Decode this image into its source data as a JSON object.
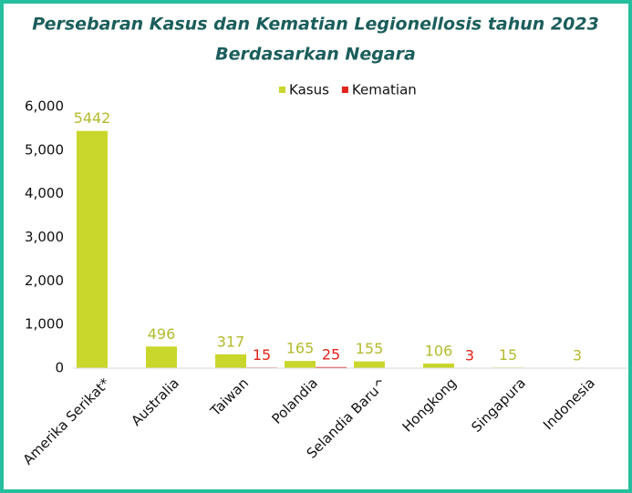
{
  "chart_data": {
    "type": "bar",
    "title": [
      "Persebaran Kasus dan Kematian Legionellosis tahun 2023",
      "Berdasarkan Negara"
    ],
    "categories": [
      "Amerika Serikat*",
      "Australia",
      "Taiwan",
      "Polandia",
      "Selandia Baru^",
      "Hongkong",
      "Singapura",
      "Indonesia"
    ],
    "series": [
      {
        "name": "Kasus",
        "color": "#c9d62c",
        "values": [
          5442,
          496,
          317,
          165,
          155,
          106,
          15,
          3
        ]
      },
      {
        "name": "Kematian",
        "color": "#e2231a",
        "values": [
          null,
          null,
          15,
          25,
          null,
          3,
          null,
          null
        ]
      }
    ],
    "ylim": [
      0,
      6000
    ],
    "yticks": [
      0,
      {
        "value": 1000,
        "label": "1,000"
      },
      {
        "value": 2000,
        "label": "2,000"
      },
      {
        "value": 3000,
        "label": "3,000"
      },
      {
        "value": 4000,
        "label": "4,000"
      },
      {
        "value": 5000,
        "label": "5,000"
      },
      {
        "value": 6000,
        "label": "6,000"
      }
    ],
    "grid": false,
    "legend": "top"
  }
}
